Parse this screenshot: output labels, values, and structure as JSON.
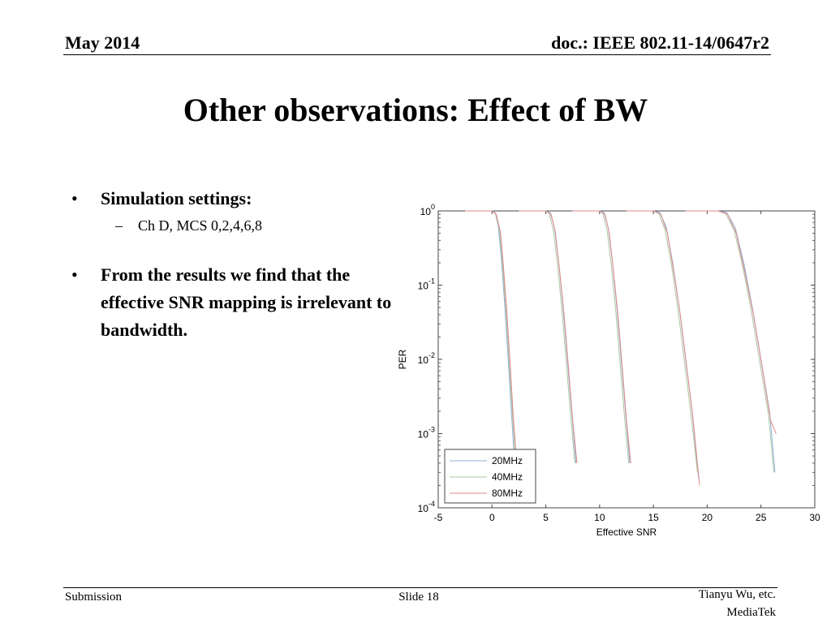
{
  "header": {
    "date": "May 2014",
    "doc_id": "doc.: IEEE 802.11-14/0647r2"
  },
  "title": "Other observations: Effect of BW",
  "bullets": [
    {
      "text": "Simulation settings:",
      "sub": [
        "Ch D, MCS 0,2,4,6,8"
      ]
    },
    {
      "text": "From the results we find that the effective SNR mapping is irrelevant to bandwidth.",
      "sub": []
    }
  ],
  "glyphs": {
    "bullet": "•",
    "dash": "–"
  },
  "chart_data": {
    "type": "line",
    "xlabel": "Effective SNR",
    "ylabel": "PER",
    "xlim": [
      -5,
      30
    ],
    "ylim": [
      0.0001,
      1
    ],
    "yscale": "log",
    "x_ticks": [
      "-5",
      "0",
      "5",
      "10",
      "15",
      "20",
      "25",
      "30"
    ],
    "y_ticks": [
      {
        "base": "10",
        "exp": "0"
      },
      {
        "base": "10",
        "exp": "-1"
      },
      {
        "base": "10",
        "exp": "-2"
      },
      {
        "base": "10",
        "exp": "-3"
      },
      {
        "base": "10",
        "exp": "-4"
      }
    ],
    "legend": {
      "placement": "bottom-left",
      "entries": [
        "20MHz",
        "40MHz",
        "80MHz"
      ]
    },
    "series": [
      {
        "name": "20MHz",
        "color": "#8fb0d8",
        "curves": [
          {
            "x": [
              -2.5,
              0,
              0.3,
              0.6,
              0.9,
              1.2,
              1.5,
              1.8,
              2.1
            ],
            "y": [
              1,
              1,
              0.95,
              0.6,
              0.2,
              0.05,
              0.01,
              0.002,
              0.0004
            ]
          },
          {
            "x": [
              2.5,
              5,
              5.4,
              5.8,
              6.2,
              6.6,
              7,
              7.4,
              7.8
            ],
            "y": [
              1,
              1,
              0.95,
              0.6,
              0.2,
              0.05,
              0.01,
              0.002,
              0.0004
            ]
          },
          {
            "x": [
              7.5,
              10,
              10.4,
              10.8,
              11.2,
              11.6,
              12,
              12.4,
              12.8
            ],
            "y": [
              1,
              1,
              0.95,
              0.6,
              0.2,
              0.05,
              0.01,
              0.002,
              0.0004
            ]
          },
          {
            "x": [
              12.5,
              15,
              15.6,
              16.2,
              16.8,
              17.4,
              18,
              18.6,
              19.2
            ],
            "y": [
              1,
              1,
              0.95,
              0.6,
              0.2,
              0.05,
              0.01,
              0.002,
              0.00025
            ]
          },
          {
            "x": [
              18,
              21,
              21.8,
              22.6,
              23.4,
              24.2,
              25,
              25.8,
              26.3
            ],
            "y": [
              1,
              1,
              0.95,
              0.6,
              0.2,
              0.05,
              0.01,
              0.002,
              0.0003
            ]
          }
        ]
      },
      {
        "name": "40MHz",
        "color": "#a8c8a0",
        "curves": [
          {
            "x": [
              -2.5,
              0,
              0.3,
              0.7,
              1,
              1.3,
              1.6,
              1.9,
              2.2
            ],
            "y": [
              1,
              1,
              0.93,
              0.55,
              0.18,
              0.045,
              0.009,
              0.0018,
              0.0004
            ]
          },
          {
            "x": [
              2.5,
              5,
              5.3,
              5.7,
              6.1,
              6.5,
              6.9,
              7.3,
              7.7
            ],
            "y": [
              1,
              1,
              0.93,
              0.55,
              0.18,
              0.045,
              0.009,
              0.0018,
              0.0004
            ]
          },
          {
            "x": [
              7.5,
              10,
              10.3,
              10.7,
              11.1,
              11.5,
              11.9,
              12.3,
              12.7
            ],
            "y": [
              1,
              1,
              0.93,
              0.55,
              0.18,
              0.045,
              0.009,
              0.0018,
              0.0004
            ]
          },
          {
            "x": [
              12.5,
              15,
              15.5,
              16.1,
              16.7,
              17.3,
              17.9,
              18.5,
              19.1
            ],
            "y": [
              1,
              1,
              0.93,
              0.55,
              0.18,
              0.045,
              0.009,
              0.0018,
              0.0003
            ]
          },
          {
            "x": [
              18,
              21,
              21.7,
              22.5,
              23.3,
              24.1,
              24.9,
              25.7,
              26.2
            ],
            "y": [
              1,
              1,
              0.93,
              0.55,
              0.18,
              0.045,
              0.009,
              0.0018,
              0.0003
            ]
          }
        ]
      },
      {
        "name": "80MHz",
        "color": "#e08888",
        "curves": [
          {
            "x": [
              -2.5,
              0,
              0.4,
              0.8,
              1.1,
              1.4,
              1.7,
              2,
              2.3
            ],
            "y": [
              1,
              1,
              0.9,
              0.5,
              0.15,
              0.04,
              0.008,
              0.0015,
              0.0004
            ]
          },
          {
            "x": [
              2.5,
              5,
              5.5,
              5.9,
              6.3,
              6.7,
              7.1,
              7.5,
              7.9
            ],
            "y": [
              1,
              1,
              0.9,
              0.5,
              0.15,
              0.04,
              0.008,
              0.0015,
              0.0004
            ]
          },
          {
            "x": [
              7.5,
              10,
              10.5,
              10.9,
              11.3,
              11.7,
              12.1,
              12.5,
              12.9
            ],
            "y": [
              1,
              1,
              0.9,
              0.5,
              0.15,
              0.04,
              0.008,
              0.0015,
              0.0004
            ]
          },
          {
            "x": [
              12.5,
              15,
              15.7,
              16.3,
              16.9,
              17.5,
              18.1,
              18.7,
              19.3
            ],
            "y": [
              1,
              1,
              0.9,
              0.5,
              0.15,
              0.04,
              0.008,
              0.0015,
              0.0002
            ]
          },
          {
            "x": [
              18,
              21,
              21.9,
              22.7,
              23.5,
              24.3,
              25.1,
              25.9,
              26.4
            ],
            "y": [
              1,
              1,
              0.9,
              0.5,
              0.15,
              0.04,
              0.008,
              0.0015,
              0.001
            ]
          }
        ]
      }
    ]
  },
  "footer": {
    "left": "Submission",
    "center": "Slide 18",
    "right_line1": "Tianyu Wu, etc.",
    "right_line2": "MediaTek"
  }
}
